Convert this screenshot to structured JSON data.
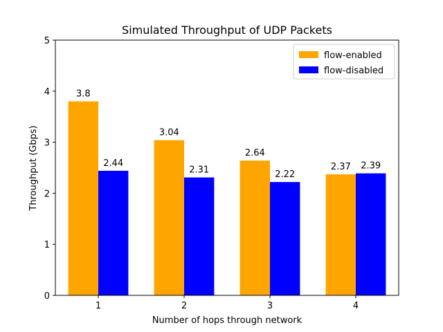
{
  "chart_data": {
    "type": "bar",
    "title": "Simulated Throughput of UDP Packets",
    "xlabel": "Number of hops through network",
    "ylabel": "Throughput (Gbps)",
    "categories": [
      "1",
      "2",
      "3",
      "4"
    ],
    "ylim": [
      0,
      5
    ],
    "yticks": [
      "0",
      "1",
      "2",
      "3",
      "4",
      "5"
    ],
    "series": [
      {
        "name": "flow-enabled",
        "color": "#ffa500",
        "values": [
          3.8,
          3.04,
          2.64,
          2.37
        ],
        "labels": [
          "3.8",
          "3.04",
          "2.64",
          "2.37"
        ]
      },
      {
        "name": "flow-disabled",
        "color": "#0000ff",
        "values": [
          2.44,
          2.31,
          2.22,
          2.39
        ],
        "labels": [
          "2.44",
          "2.31",
          "2.22",
          "2.39"
        ]
      }
    ],
    "legend": "top-right",
    "grid": false
  }
}
